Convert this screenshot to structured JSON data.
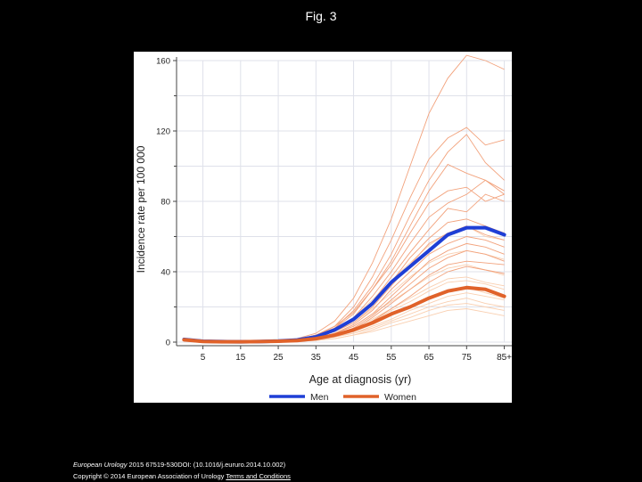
{
  "slide": {
    "title": "Fig. 3"
  },
  "footer": {
    "journal": "European Urology",
    "citation": " 2015 67519-530DOI: (10.1016/j.eururo.2014.10.002)",
    "copyright": "Copyright © 2014 European Association of Urology",
    "link_text": "Terms and Conditions"
  },
  "colors": {
    "men": "#1f3fd6",
    "women": "#e0622a",
    "countries_dark": "#f2a27c",
    "countries_light": "#f9cfb0",
    "grid": "#dfe1ea"
  },
  "chart_data": {
    "type": "line",
    "title": "",
    "xlabel": "Age at diagnosis (yr)",
    "ylabel": "Incidence rate per 100 000",
    "x": [
      0,
      5,
      10,
      15,
      20,
      25,
      30,
      35,
      40,
      45,
      50,
      55,
      60,
      65,
      70,
      75,
      80,
      85
    ],
    "x_tick_values": [
      5,
      15,
      25,
      35,
      45,
      55,
      65,
      75,
      85
    ],
    "x_tick_labels": [
      "5",
      "15",
      "25",
      "35",
      "45",
      "55",
      "65",
      "75",
      "85+"
    ],
    "xlim": [
      -2,
      87
    ],
    "ylim": [
      0,
      160
    ],
    "y_ticks": [
      0,
      40,
      80,
      120,
      160
    ],
    "grid": true,
    "legend_position": "bottom",
    "series": [
      {
        "name": "Men",
        "role": "pooled",
        "color_key": "men",
        "values": [
          1.5,
          0.5,
          0.3,
          0.2,
          0.3,
          0.6,
          1.2,
          3,
          7,
          13,
          22,
          34,
          43,
          52,
          61,
          65,
          65,
          61
        ]
      },
      {
        "name": "Women",
        "role": "pooled",
        "color_key": "women",
        "values": [
          1.3,
          0.4,
          0.2,
          0.2,
          0.3,
          0.5,
          0.9,
          2,
          4,
          7,
          11,
          16,
          20,
          25,
          29,
          31,
          30,
          26
        ]
      }
    ],
    "country_series_men": [
      [
        1.5,
        0.5,
        0.3,
        0.2,
        0.4,
        0.8,
        2,
        5,
        12,
        25,
        45,
        70,
        100,
        130,
        150,
        163,
        160,
        155
      ],
      [
        1.0,
        0.4,
        0.2,
        0.2,
        0.3,
        0.6,
        1.5,
        4,
        9,
        20,
        37,
        58,
        82,
        104,
        116,
        122,
        112,
        115
      ],
      [
        1.2,
        0.5,
        0.3,
        0.2,
        0.3,
        0.6,
        1.3,
        4,
        8,
        18,
        32,
        50,
        72,
        92,
        108,
        118,
        102,
        92
      ],
      [
        1.3,
        0.4,
        0.2,
        0.2,
        0.3,
        0.5,
        1.2,
        3,
        8,
        16,
        30,
        46,
        66,
        86,
        101,
        96,
        92,
        86
      ],
      [
        1.1,
        0.5,
        0.3,
        0.2,
        0.3,
        0.6,
        1.4,
        4,
        9,
        17,
        30,
        44,
        62,
        79,
        86,
        88,
        80,
        84
      ],
      [
        1.4,
        0.5,
        0.3,
        0.2,
        0.3,
        0.6,
        1.3,
        3,
        7,
        14,
        26,
        40,
        56,
        71,
        79,
        84,
        92,
        84
      ],
      [
        1.2,
        0.4,
        0.3,
        0.2,
        0.3,
        0.5,
        1.1,
        3,
        6,
        13,
        23,
        37,
        51,
        64,
        76,
        74,
        84,
        80
      ],
      [
        1.0,
        0.5,
        0.2,
        0.2,
        0.3,
        0.5,
        1.0,
        3,
        6,
        12,
        22,
        34,
        48,
        59,
        68,
        70,
        66,
        62
      ],
      [
        1.3,
        0.4,
        0.3,
        0.2,
        0.2,
        0.5,
        1.0,
        3,
        6,
        11,
        20,
        32,
        44,
        56,
        62,
        66,
        61,
        58
      ],
      [
        1.1,
        0.5,
        0.3,
        0.2,
        0.3,
        0.5,
        0.9,
        2,
        5,
        10,
        18,
        30,
        40,
        50,
        56,
        60,
        58,
        54
      ],
      [
        1.4,
        0.4,
        0.2,
        0.2,
        0.3,
        0.5,
        0.9,
        2,
        5,
        9,
        16,
        26,
        36,
        46,
        52,
        56,
        54,
        50
      ],
      [
        1.2,
        0.5,
        0.3,
        0.2,
        0.2,
        0.4,
        0.8,
        2,
        4,
        8,
        15,
        24,
        33,
        42,
        48,
        52,
        50,
        46
      ],
      [
        1.0,
        0.4,
        0.2,
        0.2,
        0.3,
        0.4,
        0.8,
        2,
        4,
        7,
        14,
        22,
        30,
        38,
        44,
        46,
        45,
        44
      ],
      [
        1.3,
        0.5,
        0.3,
        0.2,
        0.2,
        0.4,
        0.7,
        2,
        3,
        6,
        12,
        19,
        26,
        34,
        40,
        43,
        41,
        39
      ]
    ],
    "country_series_women": [
      [
        1.2,
        0.4,
        0.2,
        0.2,
        0.3,
        0.5,
        1.2,
        3,
        7,
        14,
        24,
        35,
        45,
        55,
        62,
        66,
        60,
        58
      ],
      [
        1.0,
        0.3,
        0.2,
        0.2,
        0.3,
        0.4,
        1.0,
        3,
        6,
        11,
        19,
        28,
        37,
        45,
        50,
        52,
        50,
        47
      ],
      [
        1.3,
        0.4,
        0.2,
        0.1,
        0.2,
        0.4,
        0.9,
        2,
        5,
        9,
        16,
        23,
        30,
        37,
        42,
        44,
        41,
        38
      ],
      [
        1.1,
        0.4,
        0.2,
        0.2,
        0.2,
        0.4,
        0.8,
        2,
        4,
        8,
        13,
        19,
        25,
        31,
        36,
        37,
        34,
        32
      ],
      [
        1.2,
        0.3,
        0.2,
        0.1,
        0.2,
        0.3,
        0.7,
        2,
        3,
        6,
        10,
        15,
        20,
        25,
        29,
        31,
        28,
        25
      ],
      [
        1.0,
        0.4,
        0.2,
        0.2,
        0.2,
        0.3,
        0.6,
        1,
        3,
        5,
        8,
        12,
        16,
        20,
        23,
        25,
        22,
        20
      ],
      [
        1.1,
        0.3,
        0.2,
        0.1,
        0.2,
        0.3,
        0.5,
        1,
        2,
        4,
        6,
        9,
        12,
        15,
        18,
        19,
        17,
        15
      ],
      [
        1.2,
        0.4,
        0.2,
        0.2,
        0.2,
        0.3,
        0.5,
        1,
        2,
        4,
        7,
        11,
        14,
        18,
        21,
        22,
        20,
        18
      ],
      [
        1.0,
        0.3,
        0.2,
        0.1,
        0.2,
        0.3,
        0.6,
        1,
        3,
        5,
        9,
        13,
        18,
        22,
        26,
        28,
        26,
        24
      ],
      [
        1.3,
        0.4,
        0.2,
        0.2,
        0.2,
        0.3,
        0.7,
        2,
        4,
        7,
        12,
        18,
        23,
        29,
        34,
        35,
        33,
        30
      ]
    ]
  }
}
